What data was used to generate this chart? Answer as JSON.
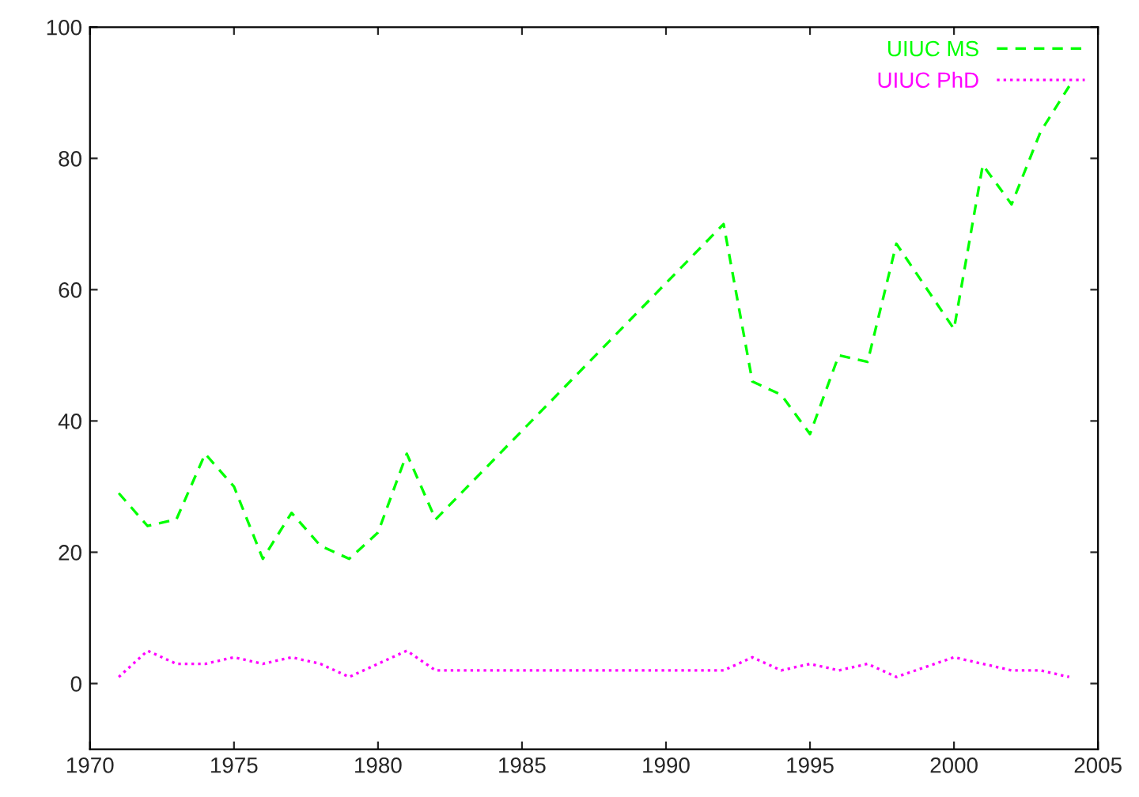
{
  "chart_data": {
    "type": "line",
    "series": [
      {
        "name": "UIUC MS",
        "color": "#00ff00",
        "line_style": "dashed",
        "x": [
          1971,
          1972,
          1973,
          1974,
          1975,
          1976,
          1977,
          1978,
          1979,
          1980,
          1981,
          1982,
          1992,
          1993,
          1994,
          1995,
          1996,
          1997,
          1998,
          2000,
          2001,
          2002,
          2003,
          2004
        ],
        "values": [
          29,
          24,
          25,
          35,
          30,
          19,
          26,
          21,
          19,
          23,
          35,
          25,
          70,
          46,
          44,
          38,
          50,
          49,
          67,
          54,
          79,
          73,
          84,
          91
        ]
      },
      {
        "name": "UIUC PhD",
        "color": "#ff00ff",
        "line_style": "dotted",
        "x": [
          1971,
          1972,
          1973,
          1974,
          1975,
          1976,
          1977,
          1978,
          1979,
          1980,
          1981,
          1982,
          1992,
          1993,
          1994,
          1995,
          1996,
          1997,
          1998,
          2000,
          2001,
          2002,
          2003,
          2004
        ],
        "values": [
          1,
          5,
          3,
          3,
          4,
          3,
          4,
          3,
          1,
          3,
          5,
          2,
          2,
          4,
          2,
          3,
          2,
          3,
          1,
          4,
          3,
          2,
          2,
          1
        ]
      }
    ],
    "xlim": [
      1970,
      2005
    ],
    "xticks": [
      1970,
      1975,
      1980,
      1985,
      1990,
      1995,
      2000,
      2005
    ],
    "ylim": [
      -10,
      100
    ],
    "yticks": [
      0,
      20,
      40,
      60,
      80,
      100
    ],
    "grid": false,
    "legend": "top right",
    "marker": "none"
  }
}
